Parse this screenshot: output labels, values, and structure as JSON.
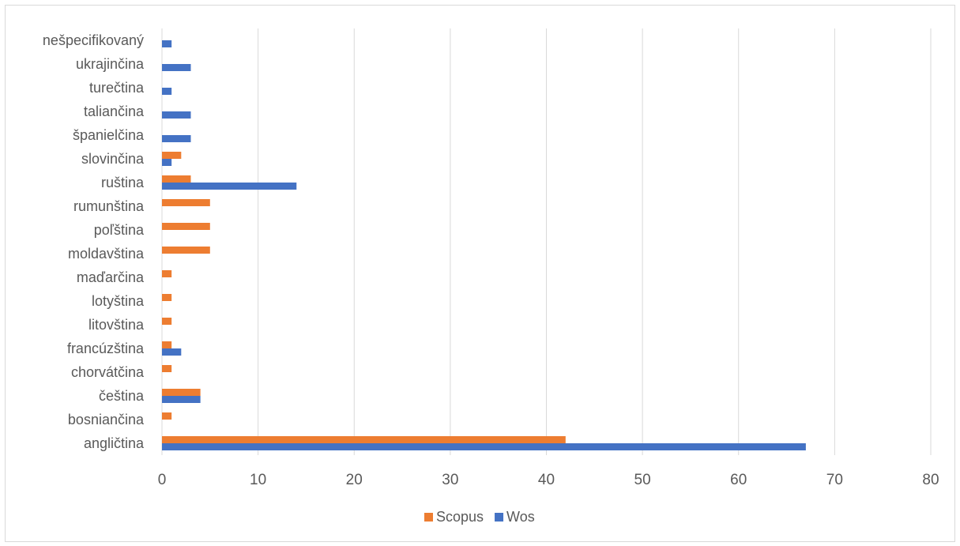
{
  "chart_data": {
    "type": "bar",
    "orientation": "horizontal",
    "categories": [
      "angličtina",
      "bosniančina",
      "čeština",
      "chorvátčina",
      "francúzština",
      "litovština",
      "lotyština",
      "maďarčina",
      "moldavština",
      "poľština",
      "rumunština",
      "ruština",
      "slovinčina",
      "španielčina",
      "taliančina",
      "turečtina",
      "ukrajinčina",
      "nešpecifikovaný"
    ],
    "series": [
      {
        "name": "Scopus",
        "color": "#ed7d31",
        "values": [
          42,
          1,
          4,
          1,
          1,
          1,
          1,
          1,
          5,
          5,
          5,
          3,
          2,
          0,
          0,
          0,
          0,
          0
        ]
      },
      {
        "name": "Wos",
        "color": "#4472c4",
        "values": [
          67,
          0,
          4,
          0,
          2,
          0,
          0,
          0,
          0,
          0,
          0,
          14,
          1,
          3,
          3,
          1,
          3,
          1
        ]
      }
    ],
    "xlim": [
      0,
      80
    ],
    "xticks": [
      "0",
      "10",
      "20",
      "30",
      "40",
      "50",
      "60",
      "70",
      "80"
    ],
    "grid": true,
    "legend_position": "bottom",
    "title": "",
    "xlabel": "",
    "ylabel": ""
  }
}
